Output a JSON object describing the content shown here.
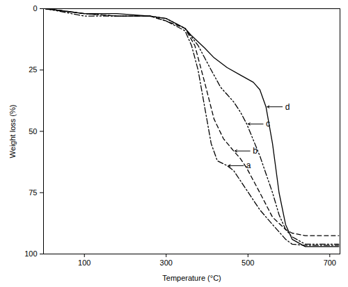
{
  "chart_data": {
    "type": "line",
    "x_label": "Temperature (°C)",
    "y_label": "Weight loss (%)",
    "xlim": [
      0,
      725
    ],
    "xticks": [
      100,
      300,
      500,
      700
    ],
    "ylim": [
      0,
      100
    ],
    "yticks": [
      0,
      25,
      50,
      75,
      100
    ],
    "grid": false,
    "series": [
      {
        "name": "a",
        "color": "#000000",
        "line_style": "dashdot",
        "x": [
          5,
          100,
          180,
          260,
          300,
          346,
          362,
          378,
          394,
          410,
          425,
          449,
          465,
          481,
          497,
          529,
          560,
          592,
          608,
          640,
          722
        ],
        "values": [
          0,
          2,
          3,
          3,
          5,
          9,
          15,
          25,
          40,
          55,
          62,
          64,
          66,
          70,
          74,
          82,
          88,
          94,
          96,
          96.5,
          96.5
        ]
      },
      {
        "name": "b",
        "color": "#000000",
        "line_style": "dashed",
        "x": [
          5,
          100,
          180,
          260,
          300,
          346,
          370,
          394,
          417,
          440,
          465,
          481,
          497,
          529,
          560,
          592,
          608,
          640,
          722
        ],
        "values": [
          0,
          2,
          3,
          3,
          5,
          8,
          15,
          30,
          45,
          53,
          58,
          61,
          65,
          75,
          85,
          90,
          91.5,
          92.5,
          92.5
        ]
      },
      {
        "name": "c",
        "color": "#000000",
        "line_style": "dashdotdot",
        "x": [
          5,
          100,
          180,
          260,
          300,
          346,
          378,
          410,
          433,
          449,
          465,
          481,
          497,
          529,
          560,
          576,
          592,
          608,
          640,
          722
        ],
        "values": [
          0,
          3,
          3,
          3,
          4,
          8,
          15,
          25,
          32,
          35,
          38,
          42,
          47,
          60,
          75,
          84,
          90,
          93,
          96,
          96
        ]
      },
      {
        "name": "d",
        "color": "#000000",
        "line_style": "solid",
        "x": [
          5,
          100,
          180,
          260,
          300,
          346,
          362,
          394,
          417,
          449,
          481,
          513,
          529,
          544,
          560,
          576,
          592,
          608,
          640,
          722
        ],
        "values": [
          0,
          2,
          2,
          3,
          4,
          8,
          11,
          16,
          20,
          24,
          27,
          30,
          33,
          40,
          55,
          75,
          88,
          94,
          97,
          97
        ]
      }
    ]
  }
}
